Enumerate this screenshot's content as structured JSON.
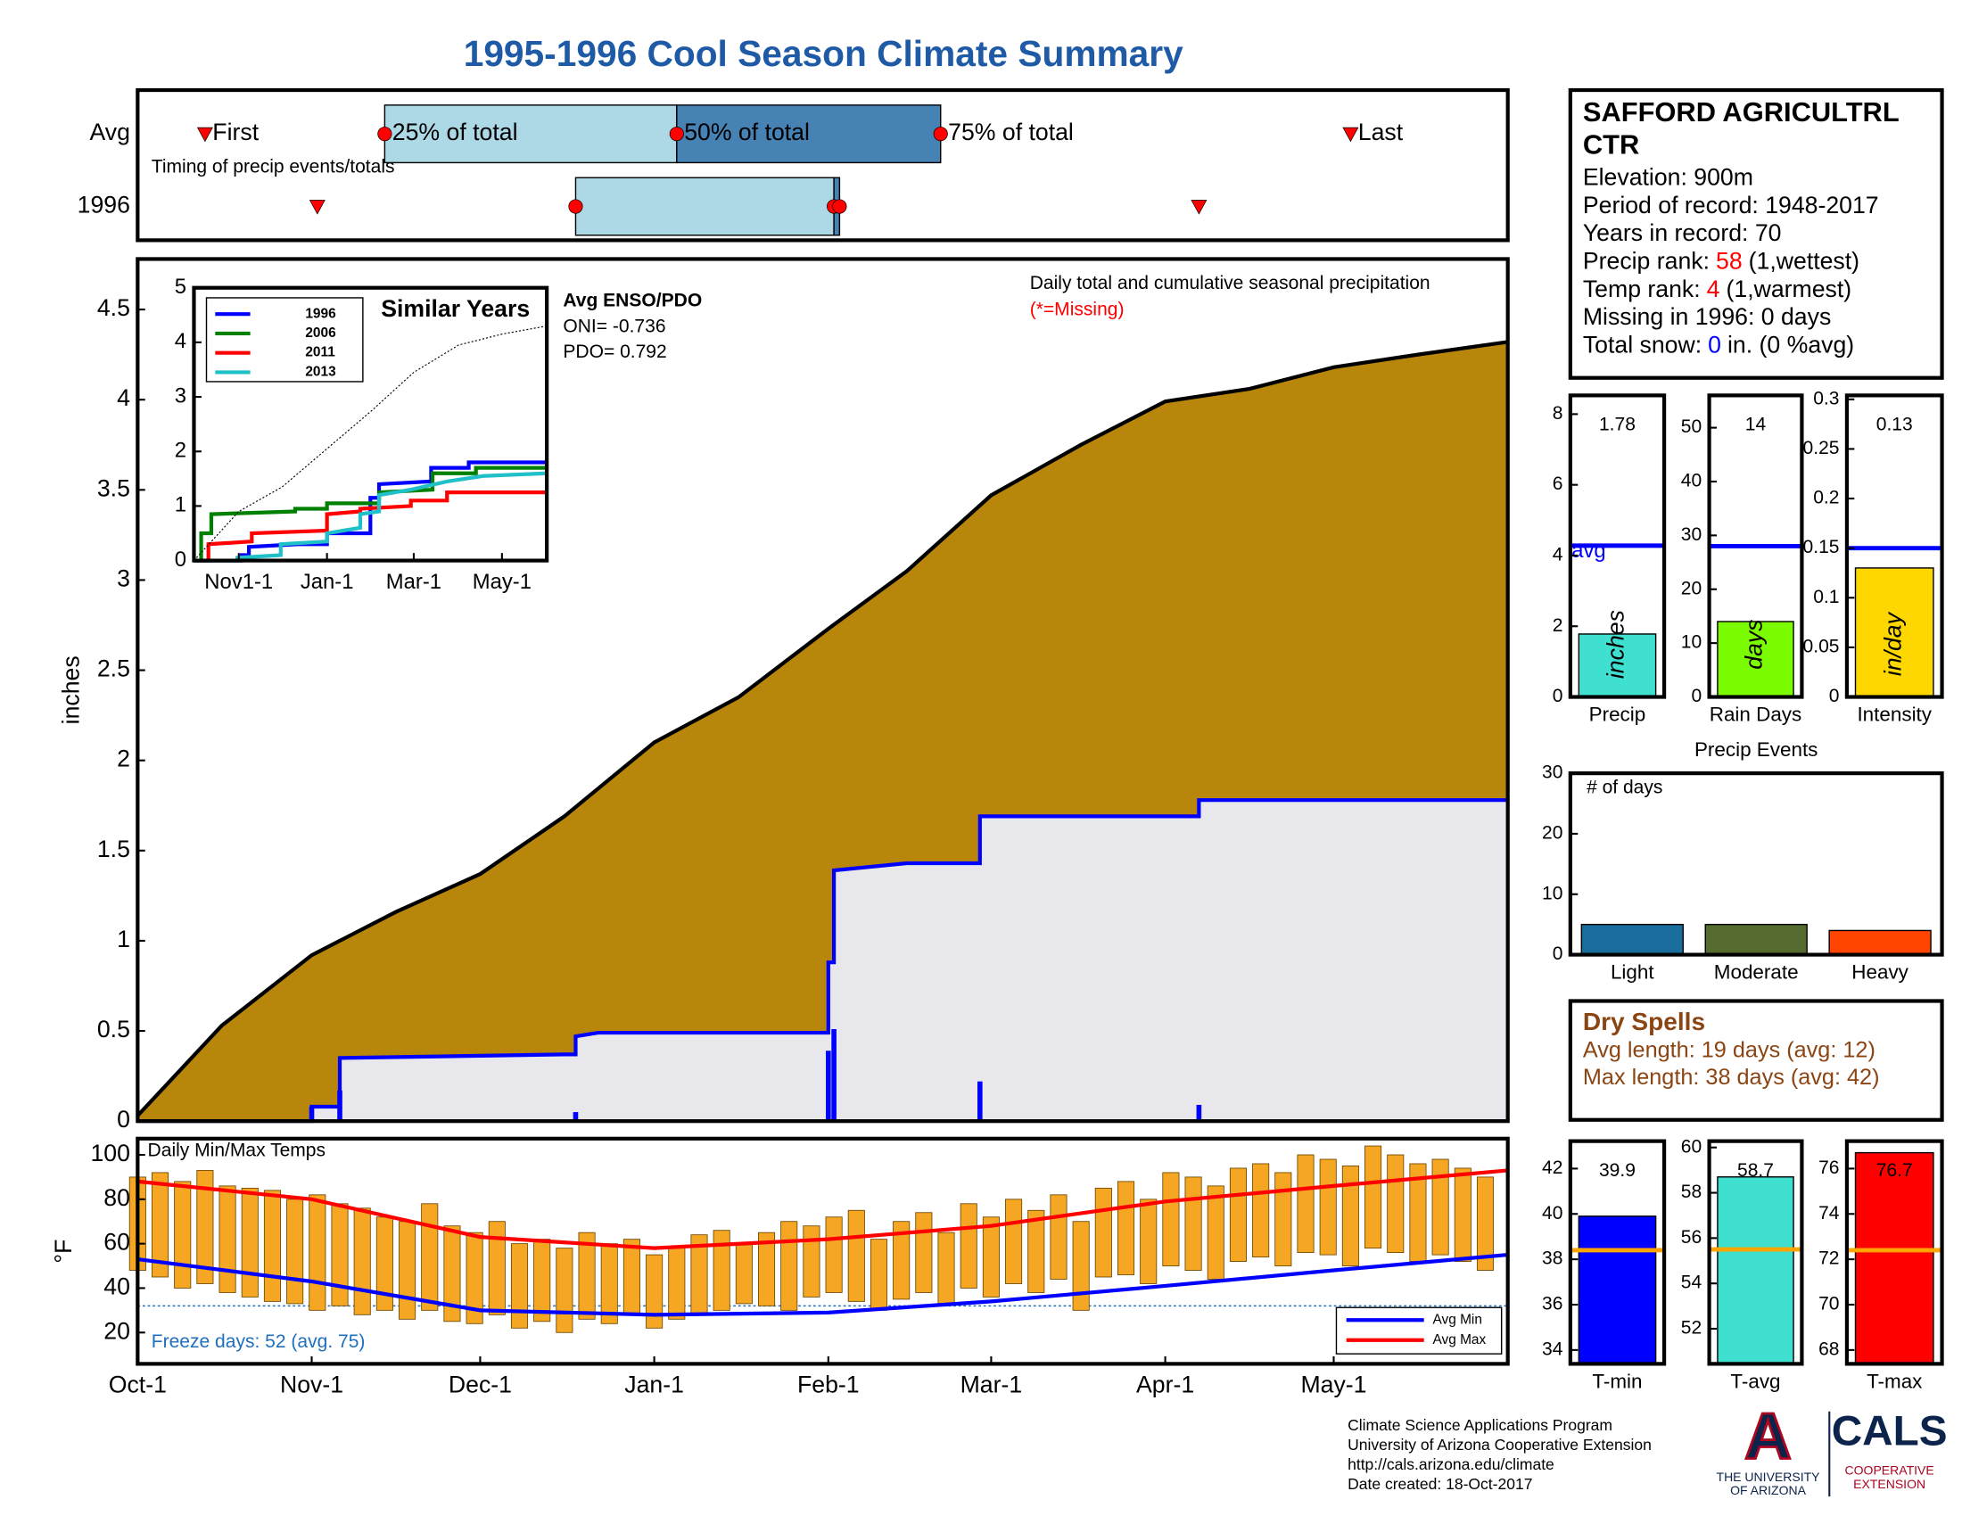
{
  "title": "1995-1996 Cool Season Climate Summary",
  "station": {
    "name": [
      "SAFFORD AGRICULTRL",
      "CTR"
    ],
    "lines": [
      [
        {
          "text": "Elevation: 900m"
        }
      ],
      [
        {
          "text": "Period of record: 1948-2017"
        }
      ],
      [
        {
          "text": "Years in record: 70"
        }
      ],
      [
        {
          "text": "Precip rank:"
        },
        {
          "text": "58",
          "color": "#ff0000"
        },
        {
          "text": "(1,wettest)"
        }
      ],
      [
        {
          "text": "Temp rank:"
        },
        {
          "text": "4",
          "color": "#ff0000"
        },
        {
          "text": "(1,warmest)"
        }
      ],
      [
        {
          "text": "Missing in 1996: 0 days"
        }
      ],
      [
        {
          "text": "Total snow:"
        },
        {
          "text": "0",
          "color": "#0000ff"
        },
        {
          "text": "in. (0 %avg)"
        }
      ]
    ]
  },
  "dry_spells": {
    "title": "Dry Spells",
    "lines": [
      "Avg length: 19 days (avg: 12)",
      "Max length: 38 days (avg: 42)"
    ],
    "color": "#8b4513"
  },
  "footer": {
    "lines": [
      "Climate Science Applications Program",
      "University of Arizona Cooperative Extension",
      "http://cals.arizona.edu/climate",
      "Date created: 18-Oct-2017"
    ],
    "logo": {
      "mark": "A",
      "university": [
        "THE UNIVERSITY",
        "OF ARIZONA"
      ],
      "cals": "CALS",
      "extension": [
        "COOPERATIVE",
        "EXTENSION"
      ]
    }
  },
  "chart_data": [
    {
      "type": "timing",
      "xlim": [
        0,
        244
      ],
      "annotation": "Timing of precip events/totals",
      "point_labels": [
        "First",
        "25% of total",
        "50% of total",
        "75% of total",
        "Last"
      ],
      "box_colors": [
        "#add8e6",
        "#4682b4"
      ],
      "marker_color": "#ff0000",
      "series": [
        {
          "name": "Avg",
          "values": [
            12,
            44,
            96,
            143,
            216
          ]
        },
        {
          "name": "1996",
          "values": [
            32,
            78,
            124,
            125,
            189
          ]
        }
      ]
    },
    {
      "type": "area",
      "ylabel": "inches",
      "xlim": [
        0,
        244
      ],
      "ylim": [
        0,
        4.78
      ],
      "yticks": [
        0,
        0.5,
        1,
        1.5,
        2,
        2.5,
        3,
        3.5,
        4,
        4.5
      ],
      "annotation": "Daily total and cumulative seasonal precipitation",
      "missing_note": "(*=Missing)",
      "missing_note_color": "#ff0000",
      "series": [
        {
          "color": "#000000",
          "fill": "#b8860b",
          "x": [
            0,
            15,
            31,
            46,
            61,
            76,
            92,
            107,
            123,
            137,
            152,
            168,
            183,
            198,
            213,
            228,
            244
          ],
          "values": [
            0.03,
            0.53,
            0.92,
            1.16,
            1.37,
            1.69,
            2.1,
            2.35,
            2.73,
            3.05,
            3.47,
            3.75,
            3.99,
            4.06,
            4.18,
            4.25,
            4.32
          ]
        },
        {
          "color": "#0000ff",
          "fill": "#e8e8ec",
          "x": [
            0,
            31,
            31,
            36,
            36,
            76,
            78,
            78,
            82,
            123,
            123,
            124,
            124,
            137,
            150,
            150,
            189,
            189,
            244
          ],
          "values": [
            0,
            0,
            0.08,
            0.08,
            0.35,
            0.37,
            0.37,
            0.47,
            0.49,
            0.49,
            0.88,
            0.88,
            1.39,
            1.43,
            1.43,
            1.69,
            1.69,
            1.78,
            1.78
          ]
        }
      ],
      "daily": {
        "color": "#0000ff",
        "x": [
          31,
          36,
          78,
          123,
          124,
          150,
          189
        ],
        "values": [
          0.08,
          0.17,
          0.05,
          0.39,
          0.51,
          0.22,
          0.09
        ]
      }
    },
    {
      "type": "line",
      "title": "Similar Years",
      "xlim": [
        0,
        244
      ],
      "ylim": [
        0,
        5
      ],
      "yticks": [
        0,
        1,
        2,
        3,
        4,
        5
      ],
      "xticks": [
        {
          "value": 31,
          "label": "Nov1-1"
        },
        {
          "value": 92,
          "label": "Jan-1"
        },
        {
          "value": 152,
          "label": "Mar-1"
        },
        {
          "value": 213,
          "label": "May-1"
        }
      ],
      "annotations": [
        "Avg ENSO/PDO",
        "ONI= -0.736",
        "PDO= 0.792"
      ],
      "series": [
        {
          "name": "1996",
          "color": "#0000ff",
          "x": [
            0,
            33,
            33,
            38,
            38,
            72,
            92,
            92,
            122,
            122,
            128,
            128,
            164,
            164,
            190,
            190,
            244
          ],
          "values": [
            0,
            0,
            0.1,
            0.1,
            0.25,
            0.3,
            0.3,
            0.5,
            0.5,
            1.15,
            1.15,
            1.4,
            1.45,
            1.7,
            1.7,
            1.8,
            1.8
          ]
        },
        {
          "name": "2006",
          "color": "#008000",
          "x": [
            0,
            5,
            5,
            12,
            12,
            70,
            70,
            92,
            92,
            128,
            128,
            165,
            165,
            195,
            195,
            244
          ],
          "values": [
            0,
            0,
            0.5,
            0.5,
            0.85,
            0.9,
            0.95,
            0.95,
            1.05,
            1.05,
            1.25,
            1.3,
            1.6,
            1.6,
            1.7,
            1.7
          ]
        },
        {
          "name": "2011",
          "color": "#ff0000",
          "x": [
            0,
            10,
            10,
            40,
            40,
            92,
            92,
            115,
            115,
            150,
            150,
            175,
            175,
            244
          ],
          "values": [
            0,
            0,
            0.3,
            0.35,
            0.5,
            0.55,
            0.85,
            0.9,
            0.95,
            1,
            1.1,
            1.1,
            1.25,
            1.25
          ]
        },
        {
          "name": "2013",
          "color": "#20c0c8",
          "x": [
            0,
            30,
            30,
            60,
            60,
            92,
            92,
            115,
            115,
            128,
            128,
            150,
            175,
            200,
            244
          ],
          "values": [
            0,
            0,
            0.05,
            0.1,
            0.3,
            0.35,
            0.5,
            0.6,
            0.85,
            0.9,
            1.2,
            1.3,
            1.45,
            1.55,
            1.6
          ]
        },
        {
          "color": "#000000",
          "dashed": true,
          "x": [
            0,
            31,
            61,
            92,
            123,
            152,
            183,
            213,
            244
          ],
          "values": [
            0,
            0.9,
            1.35,
            2.05,
            2.75,
            3.45,
            3.95,
            4.15,
            4.3
          ]
        }
      ]
    },
    {
      "type": "range",
      "title": "Daily Min/Max Temps",
      "ylabel": "°F",
      "xlim": [
        0,
        244
      ],
      "ylim": [
        5.9,
        107.3
      ],
      "yticks": [
        20,
        40,
        60,
        80,
        100
      ],
      "xticks": [
        {
          "value": 0,
          "label": "Oct-1"
        },
        {
          "value": 31,
          "label": "Nov-1"
        },
        {
          "value": 61,
          "label": "Dec-1"
        },
        {
          "value": 92,
          "label": "Jan-1"
        },
        {
          "value": 123,
          "label": "Feb-1"
        },
        {
          "value": 152,
          "label": "Mar-1"
        },
        {
          "value": 183,
          "label": "Apr-1"
        },
        {
          "value": 213,
          "label": "May-1"
        }
      ],
      "bar_color": "#f5a623",
      "freeze_line": 32,
      "freeze_text": "Freeze days: 52 (avg. 75)",
      "freeze_color": "#1f6fbf",
      "x": [
        0,
        4,
        8,
        12,
        16,
        20,
        24,
        28,
        32,
        36,
        40,
        44,
        48,
        52,
        56,
        60,
        64,
        68,
        72,
        76,
        80,
        84,
        88,
        92,
        96,
        100,
        104,
        108,
        112,
        116,
        120,
        124,
        128,
        132,
        136,
        140,
        144,
        148,
        152,
        156,
        160,
        164,
        168,
        172,
        176,
        180,
        184,
        188,
        192,
        196,
        200,
        204,
        208,
        212,
        216,
        220,
        224,
        228,
        232,
        236,
        240
      ],
      "high": [
        90,
        92,
        88,
        93,
        86,
        85,
        84,
        80,
        82,
        78,
        76,
        72,
        70,
        78,
        68,
        65,
        70,
        60,
        62,
        58,
        65,
        60,
        62,
        55,
        58,
        64,
        66,
        60,
        65,
        70,
        68,
        72,
        75,
        62,
        70,
        74,
        65,
        78,
        72,
        80,
        75,
        82,
        70,
        85,
        88,
        80,
        92,
        90,
        86,
        94,
        96,
        92,
        100,
        98,
        95,
        104,
        100,
        96,
        98,
        94,
        90
      ],
      "low": [
        48,
        45,
        40,
        42,
        38,
        36,
        34,
        33,
        30,
        32,
        28,
        30,
        26,
        30,
        25,
        24,
        28,
        22,
        25,
        20,
        26,
        24,
        28,
        22,
        26,
        28,
        30,
        33,
        32,
        30,
        36,
        38,
        34,
        30,
        35,
        38,
        33,
        40,
        36,
        42,
        38,
        44,
        30,
        45,
        46,
        42,
        50,
        48,
        44,
        52,
        54,
        50,
        56,
        55,
        50,
        58,
        56,
        52,
        55,
        52,
        48
      ],
      "series": [
        {
          "name": "Avg Min",
          "color": "#0000ff",
          "x": [
            0,
            31,
            61,
            92,
            123,
            152,
            183,
            213,
            244
          ],
          "values": [
            53,
            43,
            30,
            28,
            29,
            34,
            41,
            48,
            55
          ]
        },
        {
          "name": "Avg Max",
          "color": "#ff0000",
          "x": [
            0,
            31,
            61,
            92,
            123,
            152,
            183,
            213,
            244
          ],
          "values": [
            88,
            80,
            63,
            58,
            62,
            68,
            79,
            86,
            93
          ]
        }
      ]
    },
    {
      "type": "bar",
      "categories": [
        "Precip"
      ],
      "values": [
        1.78
      ],
      "color": "#40e0d0",
      "ylim": [
        0,
        8.53
      ],
      "yticks": [
        0,
        2,
        4,
        6,
        8
      ],
      "show_values": true,
      "unit_label": "inches",
      "avg": 4.28,
      "avg_color": "#0000ff",
      "avg_label": "avg"
    },
    {
      "type": "bar",
      "categories": [
        "Rain Days"
      ],
      "values": [
        14
      ],
      "color": "#7cfc00",
      "ylim": [
        0,
        56
      ],
      "yticks": [
        0,
        10,
        20,
        30,
        40,
        50
      ],
      "show_values": true,
      "unit_label": "days",
      "avg": 28,
      "avg_color": "#0000ff"
    },
    {
      "type": "bar",
      "categories": [
        "Intensity"
      ],
      "values": [
        0.13
      ],
      "color": "#ffd700",
      "ylim": [
        0,
        0.304
      ],
      "yticks": [
        0,
        0.05,
        0.1,
        0.15,
        0.2,
        0.25,
        0.3
      ],
      "show_values": true,
      "unit_label": "in/day",
      "avg": 0.15,
      "avg_color": "#0000ff"
    },
    {
      "type": "bar",
      "title": "Precip Events",
      "annotation": "# of days",
      "categories": [
        "Light",
        "Moderate",
        "Heavy"
      ],
      "values": [
        5,
        5,
        4
      ],
      "colors": [
        "#1a6e9e",
        "#556b2f",
        "#ff4500"
      ],
      "ylim": [
        0,
        30
      ],
      "yticks": [
        0,
        10,
        20,
        30
      ]
    },
    {
      "type": "bar",
      "categories": [
        "T-min"
      ],
      "values": [
        39.9
      ],
      "color": "#0000ff",
      "ylim": [
        33.39,
        43.21
      ],
      "yticks": [
        34,
        36,
        38,
        40,
        42
      ],
      "show_values": true,
      "avg": 38.4,
      "avg_color": "#ffa500"
    },
    {
      "type": "bar",
      "categories": [
        "T-avg"
      ],
      "values": [
        58.7
      ],
      "color": "#40e0d0",
      "ylim": [
        50.45,
        60.28
      ],
      "yticks": [
        52,
        54,
        56,
        58,
        60
      ],
      "show_values": true,
      "avg": 55.5,
      "avg_color": "#ffa500"
    },
    {
      "type": "bar",
      "categories": [
        "T-max"
      ],
      "values": [
        76.7
      ],
      "color": "#ff0000",
      "ylim": [
        67.39,
        77.21
      ],
      "yticks": [
        68,
        70,
        72,
        74,
        76
      ],
      "show_values": true,
      "avg": 72.4,
      "avg_color": "#ffa500"
    }
  ]
}
